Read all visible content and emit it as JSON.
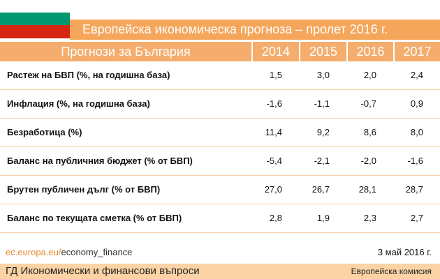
{
  "header": {
    "title": "Европейска икономическа прогноза – пролет 2016 г."
  },
  "table": {
    "columns": [
      "Прогнози за България",
      "2014",
      "2015",
      "2016",
      "2017"
    ],
    "rows": [
      [
        "Растеж на БВП (%, на годишна база)",
        "1,5",
        "3,0",
        "2,0",
        "2,4"
      ],
      [
        "Инфлация (%, на годишна база)",
        "-1,6",
        "-1,1",
        "-0,7",
        "0,9"
      ],
      [
        "Безработица (%)",
        "11,4",
        "9,2",
        "8,6",
        "8,0"
      ],
      [
        "Баланс на публичния бюджет (% от БВП)",
        "-5,4",
        "-2,1",
        "-2,0",
        "-1,6"
      ],
      [
        "Брутен публичен дълг (% от БВП)",
        "27,0",
        "26,7",
        "28,1",
        "28,7"
      ],
      [
        "Баланс по текущата сметка (% от БВП)",
        "2,8",
        "1,9",
        "2,3",
        "2,7"
      ]
    ]
  },
  "footer": {
    "url_domain": "ec.europa.eu/",
    "url_path": "economy_finance",
    "date": "3 май 2016 г.",
    "department": "ГД Икономически и финансови въпроси",
    "organization": "Европейска комисия"
  }
}
